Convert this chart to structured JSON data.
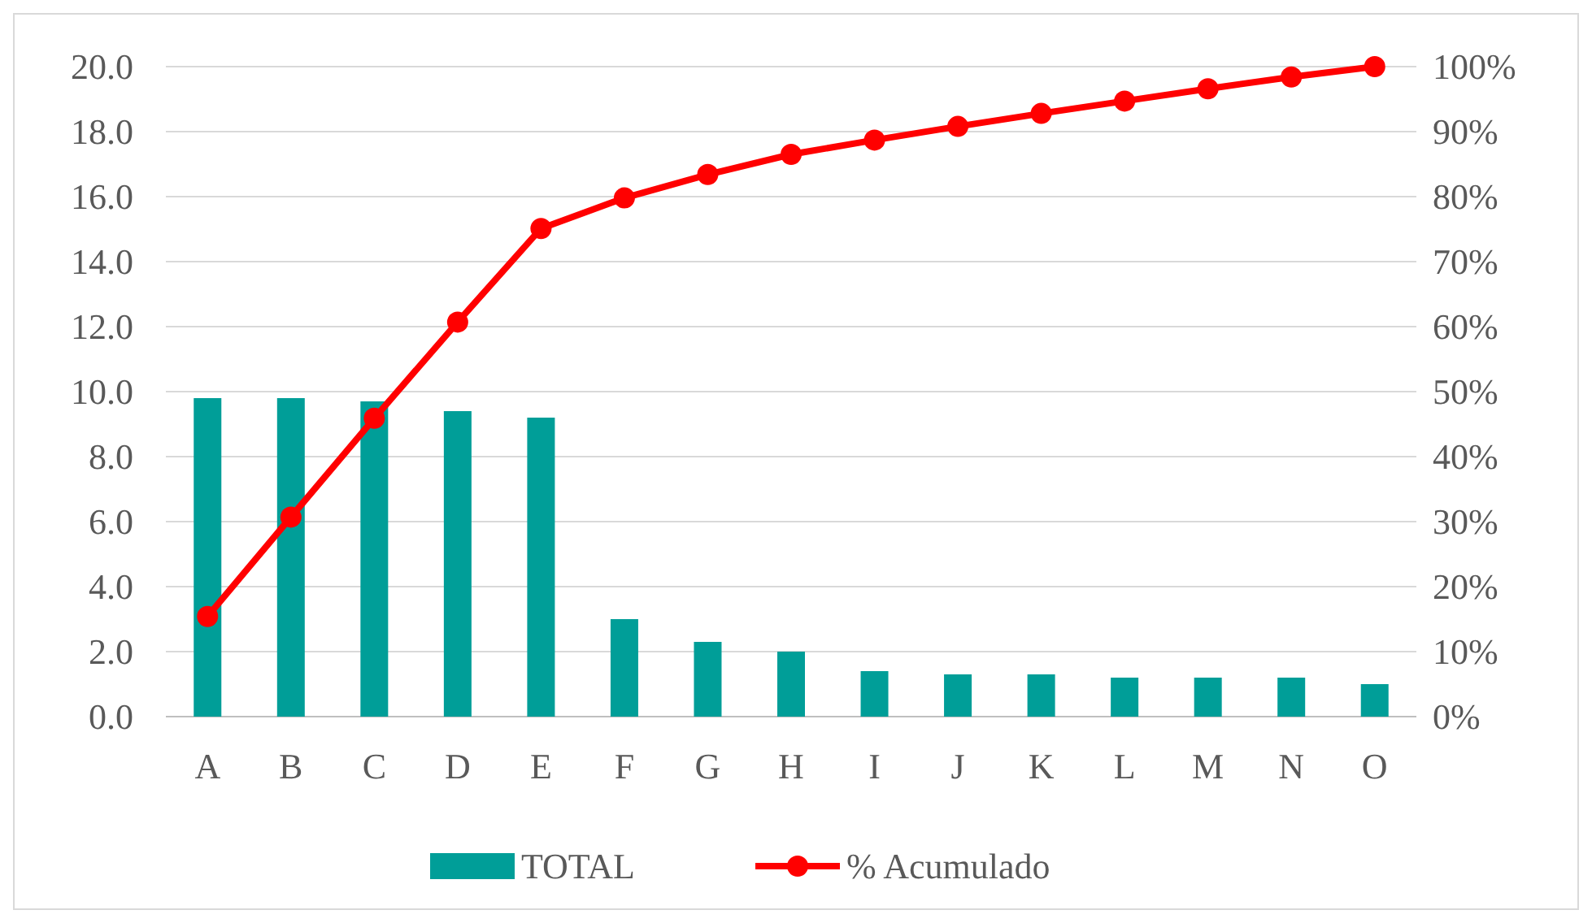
{
  "chart_data": {
    "type": "bar",
    "categories": [
      "A",
      "B",
      "C",
      "D",
      "E",
      "F",
      "G",
      "H",
      "I",
      "J",
      "K",
      "L",
      "M",
      "N",
      "O"
    ],
    "series": [
      {
        "name": "TOTAL",
        "color": "#009e98",
        "values": [
          9.8,
          9.8,
          9.7,
          9.4,
          9.2,
          3.0,
          2.3,
          2.0,
          1.4,
          1.3,
          1.3,
          1.2,
          1.2,
          1.2,
          1.0
        ]
      },
      {
        "name": "% Acumulado",
        "type": "line",
        "axis": "y2",
        "color": "#ff0000",
        "marker": "circle",
        "values": [
          15.4,
          30.7,
          45.9,
          60.7,
          75.1,
          79.8,
          83.4,
          86.5,
          88.7,
          90.8,
          92.8,
          94.7,
          96.6,
          98.4,
          100
        ]
      }
    ],
    "ylim": [
      0,
      20
    ],
    "yticks": [
      {
        "value": 0,
        "label": "0.0"
      },
      {
        "value": 2,
        "label": "2.0"
      },
      {
        "value": 4,
        "label": "4.0"
      },
      {
        "value": 6,
        "label": "6.0"
      },
      {
        "value": 8,
        "label": "8.0"
      },
      {
        "value": 10,
        "label": "10.0"
      },
      {
        "value": 12,
        "label": "12.0"
      },
      {
        "value": 14,
        "label": "14.0"
      },
      {
        "value": 16,
        "label": "16.0"
      },
      {
        "value": 18,
        "label": "18.0"
      },
      {
        "value": 20,
        "label": "20.0"
      }
    ],
    "y2lim": [
      0,
      100
    ],
    "y2ticks": [
      {
        "value": 0,
        "label": "0%"
      },
      {
        "value": 10,
        "label": "10%"
      },
      {
        "value": 20,
        "label": "20%"
      },
      {
        "value": 30,
        "label": "30%"
      },
      {
        "value": 40,
        "label": "40%"
      },
      {
        "value": 50,
        "label": "50%"
      },
      {
        "value": 60,
        "label": "60%"
      },
      {
        "value": 70,
        "label": "70%"
      },
      {
        "value": 80,
        "label": "80%"
      },
      {
        "value": 90,
        "label": "90%"
      },
      {
        "value": 100,
        "label": "100%"
      }
    ],
    "grid": "y",
    "legend": "bottom"
  }
}
